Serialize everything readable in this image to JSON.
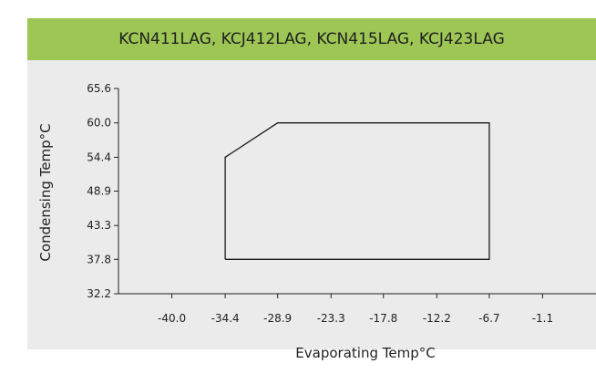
{
  "chart_data": {
    "type": "line",
    "title": "KCN411LAG, KCJ412LAG, KCN415LAG, KCJ423LAG",
    "xlabel": "Evaporating Temp°C",
    "ylabel": "Condensing Temp°C",
    "xticks": [
      "-40.0",
      "-34.4",
      "-28.9",
      "-23.3",
      "-17.8",
      "-12.2",
      "-6.7",
      "-1.1"
    ],
    "yticks": [
      "32.2",
      "37.8",
      "43.3",
      "48.9",
      "54.4",
      "60.0",
      "65.6"
    ],
    "xlim": [
      -45.6,
      4.5
    ],
    "ylim": [
      32.2,
      65.6
    ],
    "grid": false,
    "series": [
      {
        "color": "#1a1a1a",
        "x": [
          -34.4,
          -34.4,
          -28.9,
          -6.7,
          -6.7,
          -34.4
        ],
        "y": [
          37.8,
          54.4,
          60.0,
          60.0,
          37.8,
          37.8
        ]
      }
    ]
  },
  "colors": {
    "banner": "#9dc655",
    "panel": "#ebebeb",
    "line": "#1a1a1a"
  }
}
